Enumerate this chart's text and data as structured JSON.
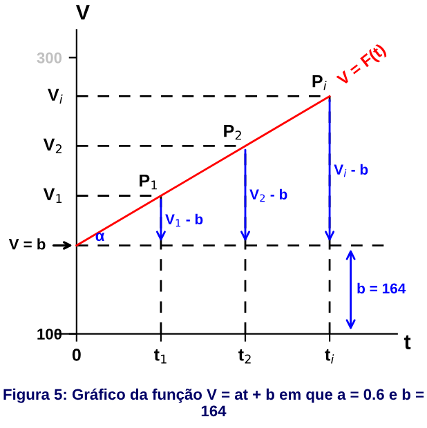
{
  "chart_data": {
    "type": "line",
    "title": "Figura 5: Gráfico da função V = at + b em que a = 0.6 e b = 164",
    "xlabel": "t",
    "ylabel": "V",
    "categories": [
      "0",
      "t$_{1}$",
      "t$_{2}$",
      "t$_{i}$"
    ],
    "series": [
      {
        "name": "V = F(t)",
        "color": "#ff0000",
        "values": [
          164,
          200,
          236,
          272
        ]
      }
    ],
    "ylim": [
      100,
      320
    ],
    "yticks": [
      100,
      300
    ],
    "ref_lines": [
      {
        "axis": "y",
        "value": 164,
        "label": "V = b",
        "line_style": "dashed",
        "color": "#000000"
      },
      {
        "axis": "y",
        "value": 200,
        "label": "V$_{1}$",
        "line_style": "dashed",
        "color": "#000000"
      },
      {
        "axis": "y",
        "value": 236,
        "label": "V$_{2}$",
        "line_style": "dashed",
        "color": "#000000"
      },
      {
        "axis": "y",
        "value": 272,
        "label": "V$_{i}$",
        "line_style": "dashed",
        "color": "#000000"
      },
      {
        "axis": "x",
        "value": "t$_{1}$",
        "line_style": "dashed",
        "color": "#000000"
      },
      {
        "axis": "x",
        "value": "t$_{2}$",
        "line_style": "dashed",
        "color": "#000000"
      },
      {
        "axis": "x",
        "value": "t$_{i}$",
        "line_style": "dashed",
        "color": "#000000"
      }
    ],
    "annotations": [
      {
        "text": "P$_{1}$",
        "x": "t$_{1}$",
        "y": 200
      },
      {
        "text": "P$_{2}$",
        "x": "t$_{2}$",
        "y": 236
      },
      {
        "text": "P$_{i}$",
        "x": "t$_{i}$",
        "y": 272
      },
      "V$_{1}$ - b",
      "V$_{2}$ - b",
      "V$_{i}$ - b",
      "b = 164",
      {
        "text": "α",
        "x": "0",
        "y": 164
      }
    ],
    "grid": false,
    "legend": false,
    "marker": "none",
    "line_style": "solid"
  }
}
